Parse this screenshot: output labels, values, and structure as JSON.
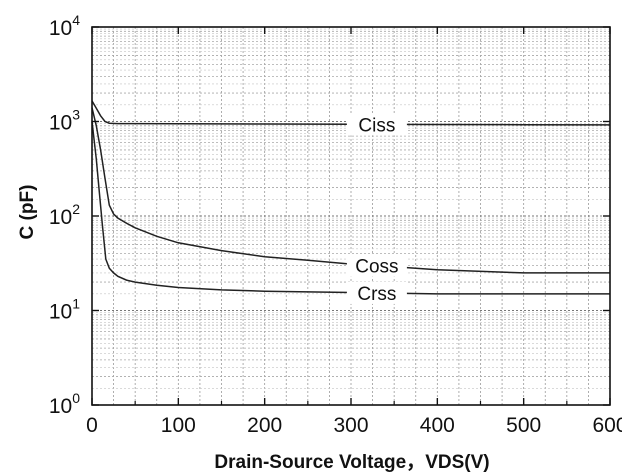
{
  "chart_data": {
    "type": "line",
    "title": "",
    "xlabel": "Drain-Source Voltage，VDS(V)",
    "ylabel": "C (pF)",
    "xlim": [
      0,
      600
    ],
    "ylim": [
      1,
      10000
    ],
    "yscale": "log",
    "grid": true,
    "x_ticks": [
      0,
      100,
      200,
      300,
      400,
      500,
      600
    ],
    "x_tick_labels": [
      "0",
      "100",
      "200",
      "300",
      "400",
      "500",
      "600"
    ],
    "y_ticks": [
      1,
      10,
      100,
      1000,
      10000
    ],
    "y_tick_labels": [
      {
        "base": "10",
        "exp": "0"
      },
      {
        "base": "10",
        "exp": "1"
      },
      {
        "base": "10",
        "exp": "2"
      },
      {
        "base": "10",
        "exp": "3"
      },
      {
        "base": "10",
        "exp": "4"
      }
    ],
    "series": [
      {
        "name": "Ciss",
        "label_at_x": 330,
        "x": [
          0,
          5,
          10,
          15,
          20,
          30,
          50,
          100,
          200,
          300,
          400,
          500,
          600
        ],
        "values": [
          1650,
          1380,
          1150,
          1000,
          960,
          950,
          950,
          945,
          940,
          935,
          930,
          925,
          920
        ]
      },
      {
        "name": "Coss",
        "label_at_x": 330,
        "x": [
          0,
          5,
          10,
          15,
          20,
          25,
          30,
          40,
          50,
          75,
          100,
          150,
          200,
          250,
          300,
          350,
          400,
          500,
          600
        ],
        "values": [
          1400,
          900,
          500,
          250,
          130,
          105,
          95,
          84,
          75,
          61,
          52,
          43,
          37,
          34,
          31,
          29,
          27,
          25,
          25
        ]
      },
      {
        "name": "Crss",
        "label_at_x": 330,
        "x": [
          0,
          5,
          8,
          12,
          16,
          20,
          25,
          30,
          40,
          50,
          75,
          100,
          150,
          200,
          300,
          400,
          500,
          600
        ],
        "values": [
          1000,
          400,
          200,
          80,
          35,
          28,
          25,
          23,
          21,
          20,
          18.5,
          17.5,
          16.5,
          16,
          15.5,
          15,
          15,
          15
        ]
      }
    ]
  }
}
